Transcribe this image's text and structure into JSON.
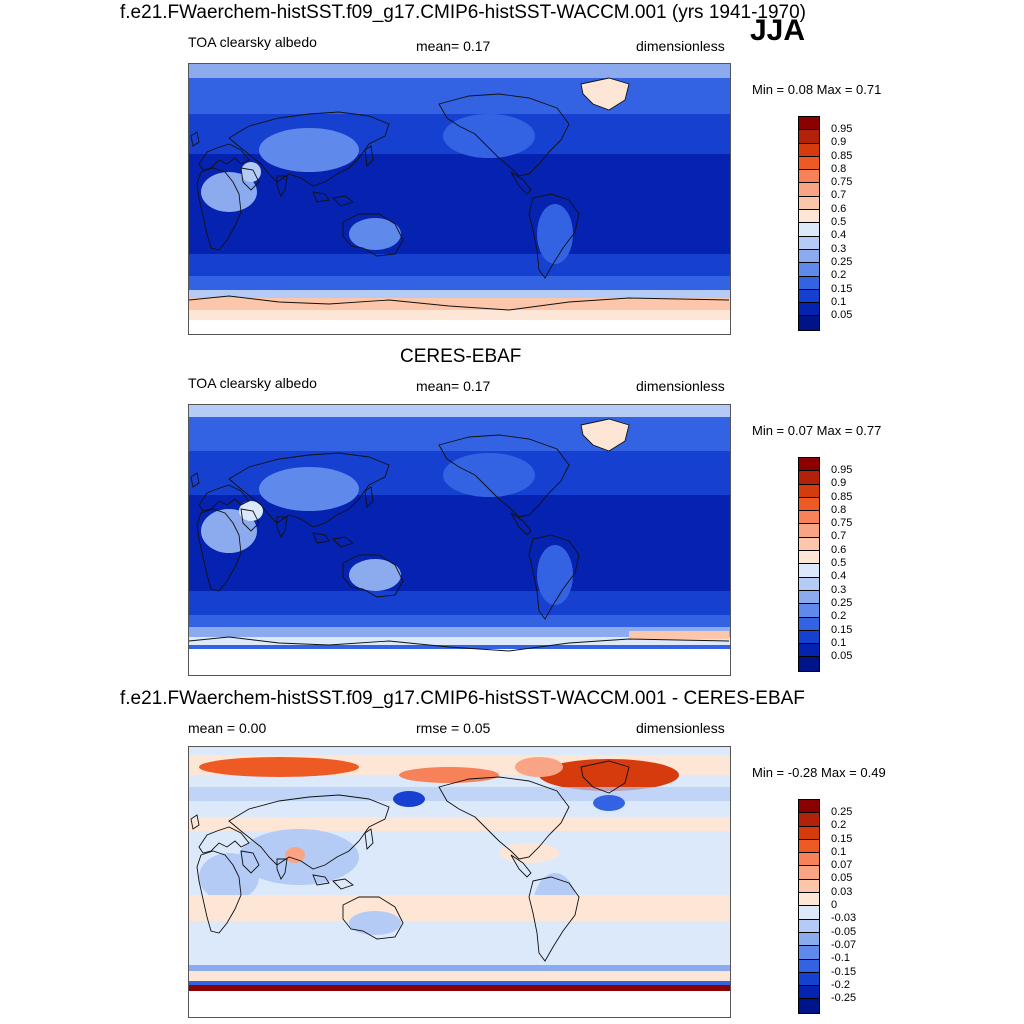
{
  "season": "JJA",
  "panels": [
    {
      "title": "f.e21.FWaerchem-histSST.f09_g17.CMIP6-histSST-WACCM.001 (yrs 1941-1970)",
      "left_label": "TOA clearsky albedo",
      "center_label": "mean=   0.17",
      "right_label": "dimensionless",
      "minmax": "Min =   0.08 Max =   0.71",
      "levels": [
        "0.95",
        "0.9",
        "0.85",
        "0.8",
        "0.75",
        "0.7",
        "0.6",
        "0.5",
        "0.4",
        "0.3",
        "0.25",
        "0.2",
        "0.15",
        "0.1",
        "0.05"
      ]
    },
    {
      "title": "CERES-EBAF",
      "left_label": "TOA clearsky albedo",
      "center_label": "mean=   0.17",
      "right_label": "dimensionless",
      "minmax": "Min =   0.07 Max =   0.77",
      "levels": [
        "0.95",
        "0.9",
        "0.85",
        "0.8",
        "0.75",
        "0.7",
        "0.6",
        "0.5",
        "0.4",
        "0.3",
        "0.25",
        "0.2",
        "0.15",
        "0.1",
        "0.05"
      ]
    },
    {
      "title": "f.e21.FWaerchem-histSST.f09_g17.CMIP6-histSST-WACCM.001 - CERES-EBAF",
      "left_label": "mean =   0.00",
      "center_label": "rmse =   0.05",
      "right_label": "dimensionless",
      "minmax": "Min =  -0.28 Max =   0.49",
      "levels": [
        "0.25",
        "0.2",
        "0.15",
        "0.1",
        "0.07",
        "0.05",
        "0.03",
        "0",
        "-0.03",
        "-0.05",
        "-0.07",
        "-0.1",
        "-0.15",
        "-0.2",
        "-0.25"
      ]
    }
  ],
  "colorbar_colors": [
    "#8b0000",
    "#b2220a",
    "#d63b0e",
    "#ee5a24",
    "#f7825a",
    "#f9a585",
    "#fbc6a9",
    "#fde6d6",
    "#dce9fa",
    "#b4cbf5",
    "#8cabef",
    "#5f89ea",
    "#3363e2",
    "#1640cf",
    "#0622b0",
    "#00148a"
  ]
}
